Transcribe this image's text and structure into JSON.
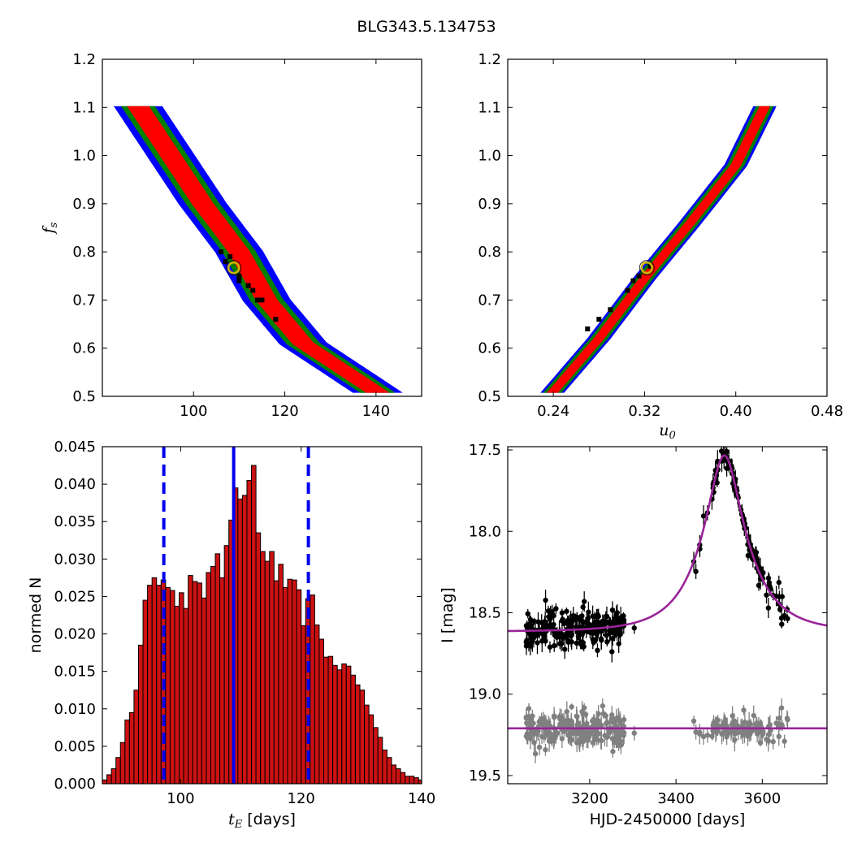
{
  "title": "BLG343.5.134753",
  "colors": {
    "region_inner": "#ff0000",
    "region_mid": "#008000",
    "region_outer": "#0000ff",
    "point": "#000000",
    "marker_ring": "#c8b400",
    "hist_bar": "#cc1111",
    "hist_line": "#0000ee",
    "model_curve": "#9a239a",
    "data_main": "#000000",
    "data_resid": "#808080"
  },
  "chart_data": [
    {
      "id": "tE_fs",
      "type": "scatter",
      "xlabel": "",
      "ylabel": "f_s",
      "xlim": [
        80,
        150
      ],
      "ylim": [
        0.5,
        1.2
      ],
      "xticks": [
        100,
        120,
        140
      ],
      "yticks": [
        0.5,
        0.6,
        0.7,
        0.8,
        0.9,
        1.0,
        1.1,
        1.2
      ],
      "yticklabels": [
        "0.5",
        "0.6",
        "0.7",
        "0.8",
        "0.9",
        "1.0",
        "1.1",
        "1.2"
      ],
      "band": {
        "spine": [
          [
            88,
            1.1
          ],
          [
            95,
            1.0
          ],
          [
            102,
            0.9
          ],
          [
            110,
            0.8
          ],
          [
            116,
            0.7
          ],
          [
            124,
            0.61
          ],
          [
            132,
            0.56
          ],
          [
            140,
            0.51
          ]
        ],
        "half_widths": {
          "outer": 5.0,
          "mid": 3.4,
          "inner": 2.1
        }
      },
      "points": [
        [
          106,
          0.8
        ],
        [
          108,
          0.79
        ],
        [
          110,
          0.75
        ],
        [
          110,
          0.74
        ],
        [
          113,
          0.72
        ],
        [
          114,
          0.7
        ],
        [
          115,
          0.7
        ],
        [
          118,
          0.66
        ],
        [
          107,
          0.78
        ],
        [
          112,
          0.73
        ]
      ],
      "best_fit": [
        108.8,
        0.767
      ]
    },
    {
      "id": "u0_fs",
      "type": "scatter",
      "xlabel": "u_0",
      "ylabel": "",
      "xlim": [
        0.2,
        0.48
      ],
      "ylim": [
        0.5,
        1.2
      ],
      "xticks": [
        0.24,
        0.32,
        0.4,
        0.48
      ],
      "xticklabels": [
        "0.24",
        "0.32",
        "0.40",
        "0.48"
      ],
      "yticks": [
        0.5,
        0.6,
        0.7,
        0.8,
        0.9,
        1.0,
        1.1,
        1.2
      ],
      "yticklabels": [
        "0.5",
        "0.6",
        "0.7",
        "0.8",
        "0.9",
        "1.0",
        "1.1",
        "1.2"
      ],
      "band": {
        "spine": [
          [
            0.24,
            0.51
          ],
          [
            0.28,
            0.62
          ],
          [
            0.32,
            0.745
          ],
          [
            0.36,
            0.86
          ],
          [
            0.4,
            0.98
          ],
          [
            0.425,
            1.1
          ]
        ],
        "half_widths": {
          "outer": 0.009,
          "mid": 0.0065,
          "inner": 0.0035
        }
      },
      "points": [
        [
          0.315,
          0.75
        ],
        [
          0.31,
          0.74
        ],
        [
          0.305,
          0.72
        ],
        [
          0.29,
          0.68
        ],
        [
          0.28,
          0.66
        ],
        [
          0.27,
          0.64
        ],
        [
          0.325,
          0.77
        ]
      ],
      "best_fit": [
        0.322,
        0.767
      ]
    },
    {
      "id": "tE_hist",
      "type": "bar",
      "xlabel": "t_E [days]",
      "ylabel": "normed N",
      "xlim": [
        87,
        140
      ],
      "ylim": [
        0,
        0.045
      ],
      "xticks": [
        100,
        120,
        140
      ],
      "yticks": [
        0,
        0.005,
        0.01,
        0.015,
        0.02,
        0.025,
        0.03,
        0.035,
        0.04,
        0.045
      ],
      "yticklabels": [
        "0.000",
        "0.005",
        "0.010",
        "0.015",
        "0.020",
        "0.025",
        "0.030",
        "0.035",
        "0.040",
        "0.045"
      ],
      "bin_start": 87,
      "bin_width": 0.75,
      "values": [
        0.0005,
        0.0012,
        0.002,
        0.0035,
        0.0055,
        0.0085,
        0.0095,
        0.0125,
        0.0185,
        0.0245,
        0.0265,
        0.0275,
        0.0265,
        0.0272,
        0.0262,
        0.0258,
        0.0237,
        0.0255,
        0.0234,
        0.0278,
        0.027,
        0.0268,
        0.0248,
        0.0282,
        0.029,
        0.0307,
        0.0275,
        0.0318,
        0.0352,
        0.0395,
        0.038,
        0.0385,
        0.0405,
        0.0425,
        0.0335,
        0.031,
        0.0297,
        0.031,
        0.0271,
        0.0293,
        0.0262,
        0.0273,
        0.0272,
        0.0259,
        0.0211,
        0.0247,
        0.0252,
        0.0212,
        0.0193,
        0.0169,
        0.017,
        0.0158,
        0.0152,
        0.016,
        0.0157,
        0.0145,
        0.0132,
        0.0125,
        0.0105,
        0.0092,
        0.0075,
        0.0062,
        0.0045,
        0.0035,
        0.0025,
        0.002,
        0.0015,
        0.001,
        0.001,
        0.0008,
        0.0005
      ],
      "median": 108.8,
      "lower": 97.2,
      "upper": 121.2
    },
    {
      "id": "lightcurve",
      "type": "scatter",
      "xlabel": "HJD-2450000 [days]",
      "ylabel": "I [mag]",
      "xlim": [
        3010,
        3750
      ],
      "ylim": [
        19.55,
        17.48
      ],
      "xticks": [
        3200,
        3400,
        3600
      ],
      "yticks": [
        17.5,
        18.0,
        18.5,
        19.0,
        19.5
      ],
      "yticklabels": [
        "17.5",
        "18.0",
        "18.5",
        "19.0",
        "19.5"
      ],
      "model": {
        "t0": 3512,
        "tE": 108.8,
        "u0": 0.322,
        "fs": 0.767,
        "I0": 18.615
      },
      "residual_offset": 19.21
    }
  ]
}
